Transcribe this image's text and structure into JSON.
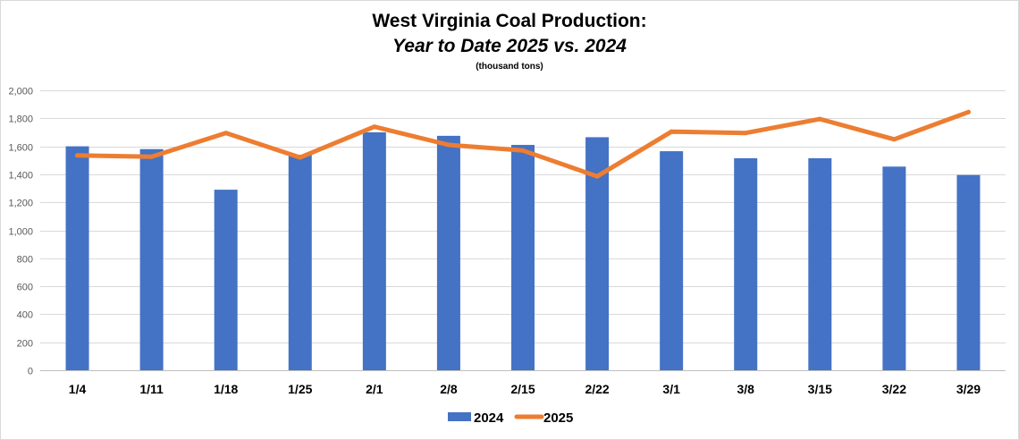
{
  "chart_data": {
    "type": "bar",
    "title": "West Virginia Coal Production:",
    "subtitle": "Year to Date 2025 vs. 2024",
    "units": "(thousand tons)",
    "categories": [
      "1/4",
      "1/11",
      "1/18",
      "1/25",
      "2/1",
      "2/8",
      "2/15",
      "2/22",
      "3/1",
      "3/8",
      "3/15",
      "3/22",
      "3/29"
    ],
    "series": [
      {
        "name": "2024",
        "kind": "bar",
        "color": "#4472c4",
        "values": [
          1600,
          1580,
          1290,
          1540,
          1700,
          1675,
          1610,
          1665,
          1565,
          1515,
          1515,
          1455,
          1395
        ]
      },
      {
        "name": "2025",
        "kind": "line",
        "color": "#ed7d31",
        "values": [
          1535,
          1525,
          1695,
          1520,
          1740,
          1610,
          1570,
          1385,
          1705,
          1695,
          1795,
          1650,
          1845
        ]
      }
    ],
    "ylim": [
      0,
      2000
    ],
    "yticks": [
      "2,000",
      "1,800",
      "1,600",
      "1,400",
      "1,200",
      "1,000",
      "800",
      "600",
      "400",
      "200",
      "0"
    ],
    "ytick_values": [
      2000,
      1800,
      1600,
      1400,
      1200,
      1000,
      800,
      600,
      400,
      200,
      0
    ],
    "grid": true,
    "legend_position": "bottom"
  }
}
